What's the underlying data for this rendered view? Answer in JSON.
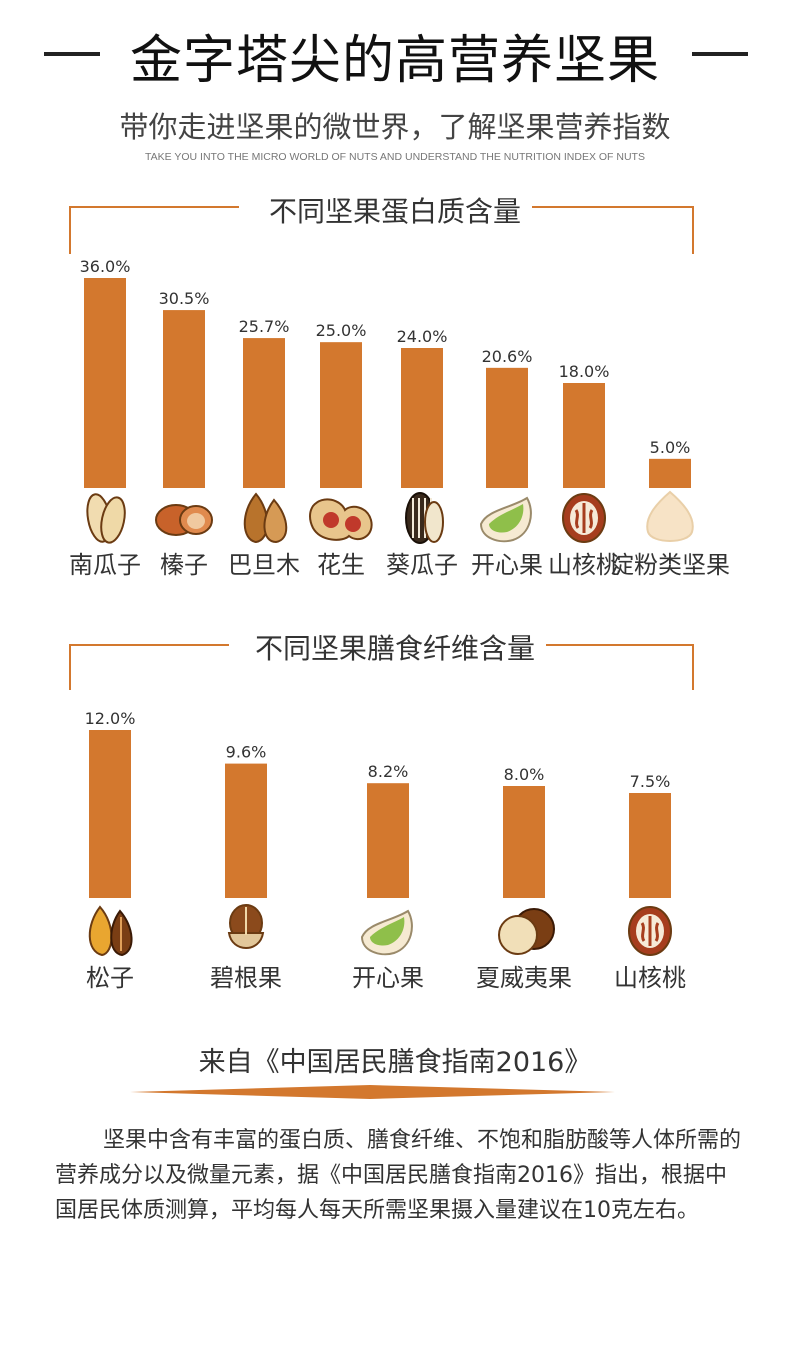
{
  "header": {
    "title": "金字塔尖的高营养坚果",
    "subtitle": "带你走进坚果的微世界，了解坚果营养指数",
    "subtitle_en": "TAKE YOU INTO THE MICRO WORLD OF NUTS AND UNDERSTAND THE NUTRITION INDEX OF NUTS"
  },
  "colors": {
    "bar": "#d3782e",
    "text": "#333333"
  },
  "chart_data": [
    {
      "type": "bar",
      "title": "不同坚果蛋白质含量",
      "categories": [
        "南瓜子",
        "榛子",
        "巴旦木",
        "花生",
        "葵瓜子",
        "开心果",
        "山核桃",
        "淀粉类坚果"
      ],
      "values": [
        36.0,
        30.5,
        25.7,
        25.0,
        24.0,
        20.6,
        18.0,
        5.0
      ],
      "value_labels": [
        "36.0%",
        "30.5%",
        "25.7%",
        "25.0%",
        "24.0%",
        "20.6%",
        "18.0%",
        "5.0%"
      ],
      "icons": [
        "pumpkin-seed-icon",
        "hazelnut-icon",
        "almond-icon",
        "peanut-icon",
        "sunflower-seed-icon",
        "pistachio-icon",
        "walnut-icon",
        "chestnut-icon"
      ],
      "grid": false
    },
    {
      "type": "bar",
      "title": "不同坚果膳食纤维含量",
      "categories": [
        "松子",
        "碧根果",
        "开心果",
        "夏威夷果",
        "山核桃"
      ],
      "values": [
        12.0,
        9.6,
        8.2,
        8.0,
        7.5
      ],
      "value_labels": [
        "12.0%",
        "9.6%",
        "8.2%",
        "8.0%",
        "7.5%"
      ],
      "icons": [
        "pine-nut-icon",
        "pecan-icon",
        "pistachio-icon",
        "macadamia-icon",
        "walnut-icon"
      ],
      "grid": false
    }
  ],
  "footer": {
    "source": "来自《中国居民膳食指南2016》",
    "paragraph": "坚果中含有丰富的蛋白质、膳食纤维、不饱和脂肪酸等人体所需的营养成分以及微量元素，据《中国居民膳食指南2016》指出，根据中国居民体质测算，平均每人每天所需坚果摄入量建议在10克左右。"
  }
}
